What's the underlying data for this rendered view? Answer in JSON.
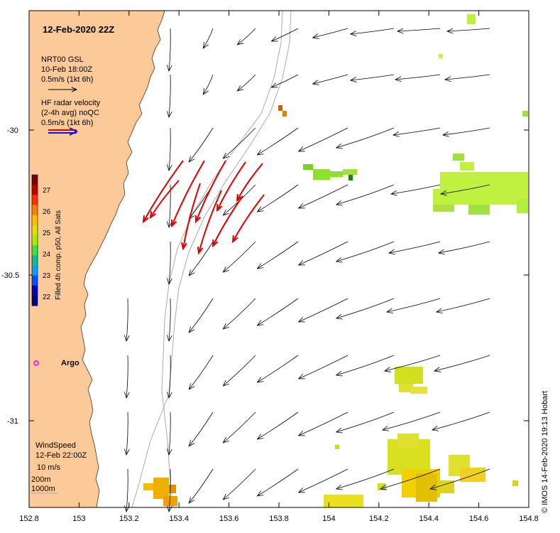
{
  "title": "12-Feb-2020 22Z",
  "model_legend": {
    "name": "NRT00 GSL",
    "time": "10-Feb 18:00Z",
    "scale": "0.5m/s (1kt 6h)"
  },
  "radar_legend": {
    "line1": "HF radar velocity",
    "line2": "(2-4h avg) noQC",
    "scale": "0.5m/s (1kt 6h)"
  },
  "colorbar": {
    "title": "Filled 4h comp. p50, All Sats",
    "ticks": [
      "27",
      "26",
      "25",
      "24",
      "23",
      "22"
    ],
    "range": [
      22,
      27.7
    ]
  },
  "argo_label": "Argo",
  "wind_legend": {
    "line1": "WindSpeed",
    "line2": "12-Feb 22:00Z",
    "line3": "10 m/s"
  },
  "depth_legend": {
    "contour1": "200m",
    "contour2": "1000m"
  },
  "axes": {
    "x_ticks": [
      "152.8",
      "153",
      "153.2",
      "153.4",
      "153.6",
      "153.8",
      "154",
      "154.2",
      "154.4",
      "154.6",
      "154.8"
    ],
    "y_ticks": [
      "-30",
      "-30.5",
      "-31"
    ],
    "x_range": [
      152.8,
      154.8
    ],
    "y_range": [
      -31.3,
      -29.6
    ]
  },
  "credit": "© IMOS 14-Feb-2020 19:13 Hobart",
  "colors": {
    "land": "#FCCA99",
    "radar_vector": "#E00000",
    "model_vector": "#000000",
    "argo": "#E030E0",
    "scale_arrow_blue": "#1010E0"
  }
}
